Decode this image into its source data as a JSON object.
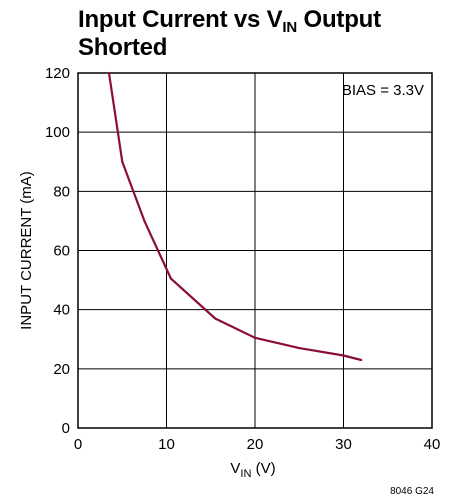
{
  "chart_data": {
    "type": "line",
    "title": {
      "prefix": "Input Current vs V",
      "subscript": "IN",
      "suffix": " Output Shorted"
    },
    "xlabel": {
      "main": "V",
      "subscript": "IN",
      "suffix": " (V)"
    },
    "ylabel": "INPUT CURRENT (mA)",
    "xlim": [
      0,
      40
    ],
    "ylim": [
      0,
      120
    ],
    "x_ticks": [
      0,
      10,
      20,
      30,
      40
    ],
    "y_ticks": [
      0,
      20,
      40,
      60,
      80,
      100,
      120
    ],
    "grid": true,
    "annotation": "BIAS = 3.3V",
    "figure_code": "8046 G24",
    "line_color": "#8b0d3a",
    "series": [
      {
        "x": [
          3.5,
          5,
          7.5,
          10.5,
          15.5,
          20,
          25,
          30,
          32
        ],
        "y": [
          120,
          90,
          70,
          50.5,
          37,
          30.5,
          27,
          24.5,
          23
        ]
      }
    ]
  }
}
